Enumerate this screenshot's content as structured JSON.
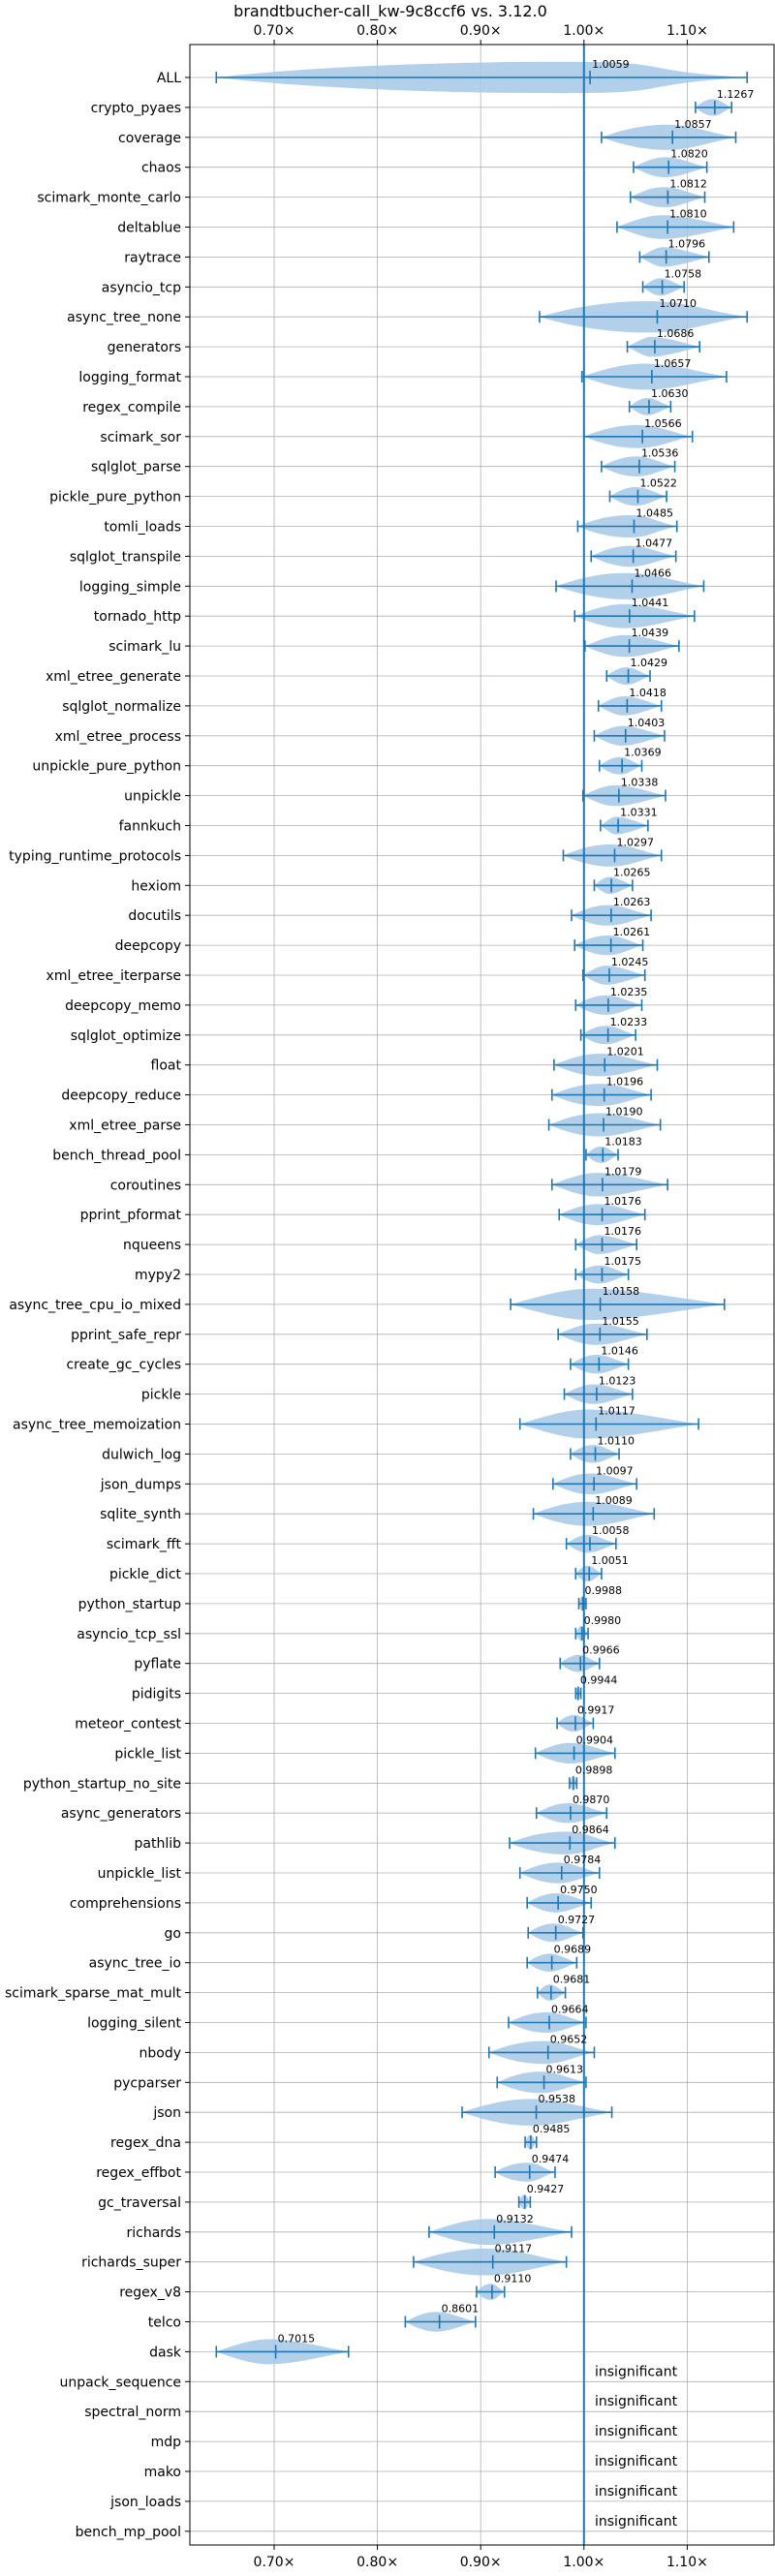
{
  "chart_data": {
    "type": "violin",
    "title": "brandtbucher-call_kw-9c8ccf6 vs. 3.12.0",
    "xlabel": "",
    "ylabel": "",
    "xlim": [
      0.63,
      1.18
    ],
    "x_ticks": [
      0.7,
      0.8,
      0.9,
      1.0,
      1.1
    ],
    "x_tick_labels": [
      "0.70×",
      "0.80×",
      "0.90×",
      "1.00×",
      "1.10×"
    ],
    "reference_line": 1.0,
    "grid": true,
    "colors": {
      "accent": "#1f77b4",
      "violin_fill": "#a6c8e6",
      "grid": "#b0b0b0"
    },
    "insignificant_label": "insignificant",
    "benchmarks": [
      {
        "name": "ALL",
        "value": 1.0059,
        "label": "1.0059",
        "min": 0.644,
        "max": 1.158
      },
      {
        "name": "crypto_pyaes",
        "value": 1.1267,
        "label": "1.1267",
        "min": 1.108,
        "max": 1.143
      },
      {
        "name": "coverage",
        "value": 1.0857,
        "label": "1.0857",
        "min": 1.017,
        "max": 1.147
      },
      {
        "name": "chaos",
        "value": 1.082,
        "label": "1.0820",
        "min": 1.048,
        "max": 1.119
      },
      {
        "name": "scimark_monte_carlo",
        "value": 1.0812,
        "label": "1.0812",
        "min": 1.045,
        "max": 1.117
      },
      {
        "name": "deltablue",
        "value": 1.081,
        "label": "1.0810",
        "min": 1.032,
        "max": 1.145
      },
      {
        "name": "raytrace",
        "value": 1.0796,
        "label": "1.0796",
        "min": 1.054,
        "max": 1.121
      },
      {
        "name": "asyncio_tcp",
        "value": 1.0758,
        "label": "1.0758",
        "min": 1.057,
        "max": 1.097
      },
      {
        "name": "async_tree_none",
        "value": 1.071,
        "label": "1.0710",
        "min": 0.957,
        "max": 1.158
      },
      {
        "name": "generators",
        "value": 1.0686,
        "label": "1.0686",
        "min": 1.042,
        "max": 1.112
      },
      {
        "name": "logging_format",
        "value": 1.0657,
        "label": "1.0657",
        "min": 0.998,
        "max": 1.138
      },
      {
        "name": "regex_compile",
        "value": 1.063,
        "label": "1.0630",
        "min": 1.044,
        "max": 1.084
      },
      {
        "name": "scimark_sor",
        "value": 1.0566,
        "label": "1.0566",
        "min": 1.0,
        "max": 1.105
      },
      {
        "name": "sqlglot_parse",
        "value": 1.0536,
        "label": "1.0536",
        "min": 1.017,
        "max": 1.088
      },
      {
        "name": "pickle_pure_python",
        "value": 1.0522,
        "label": "1.0522",
        "min": 1.025,
        "max": 1.08
      },
      {
        "name": "tomli_loads",
        "value": 1.0485,
        "label": "1.0485",
        "min": 0.994,
        "max": 1.09
      },
      {
        "name": "sqlglot_transpile",
        "value": 1.0477,
        "label": "1.0477",
        "min": 1.007,
        "max": 1.089
      },
      {
        "name": "logging_simple",
        "value": 1.0466,
        "label": "1.0466",
        "min": 0.973,
        "max": 1.116
      },
      {
        "name": "tornado_http",
        "value": 1.0441,
        "label": "1.0441",
        "min": 0.991,
        "max": 1.107
      },
      {
        "name": "scimark_lu",
        "value": 1.0439,
        "label": "1.0439",
        "min": 1.001,
        "max": 1.092
      },
      {
        "name": "xml_etree_generate",
        "value": 1.0429,
        "label": "1.0429",
        "min": 1.022,
        "max": 1.064
      },
      {
        "name": "sqlglot_normalize",
        "value": 1.0418,
        "label": "1.0418",
        "min": 1.014,
        "max": 1.075
      },
      {
        "name": "xml_etree_process",
        "value": 1.0403,
        "label": "1.0403",
        "min": 1.01,
        "max": 1.078
      },
      {
        "name": "unpickle_pure_python",
        "value": 1.0369,
        "label": "1.0369",
        "min": 1.015,
        "max": 1.056
      },
      {
        "name": "unpickle",
        "value": 1.0338,
        "label": "1.0338",
        "min": 0.999,
        "max": 1.079
      },
      {
        "name": "fannkuch",
        "value": 1.0331,
        "label": "1.0331",
        "min": 1.016,
        "max": 1.062
      },
      {
        "name": "typing_runtime_protocols",
        "value": 1.0297,
        "label": "1.0297",
        "min": 0.98,
        "max": 1.075
      },
      {
        "name": "hexiom",
        "value": 1.0265,
        "label": "1.0265",
        "min": 1.01,
        "max": 1.047
      },
      {
        "name": "docutils",
        "value": 1.0263,
        "label": "1.0263",
        "min": 0.988,
        "max": 1.065
      },
      {
        "name": "deepcopy",
        "value": 1.0261,
        "label": "1.0261",
        "min": 0.991,
        "max": 1.057
      },
      {
        "name": "xml_etree_iterparse",
        "value": 1.0245,
        "label": "1.0245",
        "min": 0.999,
        "max": 1.059
      },
      {
        "name": "deepcopy_memo",
        "value": 1.0235,
        "label": "1.0235",
        "min": 0.992,
        "max": 1.056
      },
      {
        "name": "sqlglot_optimize",
        "value": 1.0233,
        "label": "1.0233",
        "min": 0.997,
        "max": 1.05
      },
      {
        "name": "float",
        "value": 1.0201,
        "label": "1.0201",
        "min": 0.971,
        "max": 1.071
      },
      {
        "name": "deepcopy_reduce",
        "value": 1.0196,
        "label": "1.0196",
        "min": 0.969,
        "max": 1.065
      },
      {
        "name": "xml_etree_parse",
        "value": 1.019,
        "label": "1.0190",
        "min": 0.966,
        "max": 1.074
      },
      {
        "name": "bench_thread_pool",
        "value": 1.0183,
        "label": "1.0183",
        "min": 1.002,
        "max": 1.033
      },
      {
        "name": "coroutines",
        "value": 1.0179,
        "label": "1.0179",
        "min": 0.969,
        "max": 1.081
      },
      {
        "name": "pprint_pformat",
        "value": 1.0176,
        "label": "1.0176",
        "min": 0.976,
        "max": 1.059
      },
      {
        "name": "nqueens",
        "value": 1.0176,
        "label": "1.0176",
        "min": 0.992,
        "max": 1.051
      },
      {
        "name": "mypy2",
        "value": 1.0175,
        "label": "1.0175",
        "min": 0.992,
        "max": 1.043
      },
      {
        "name": "async_tree_cpu_io_mixed",
        "value": 1.0158,
        "label": "1.0158",
        "min": 0.929,
        "max": 1.136
      },
      {
        "name": "pprint_safe_repr",
        "value": 1.0155,
        "label": "1.0155",
        "min": 0.975,
        "max": 1.061
      },
      {
        "name": "create_gc_cycles",
        "value": 1.0146,
        "label": "1.0146",
        "min": 0.987,
        "max": 1.043
      },
      {
        "name": "pickle",
        "value": 1.0123,
        "label": "1.0123",
        "min": 0.981,
        "max": 1.047
      },
      {
        "name": "async_tree_memoization",
        "value": 1.0117,
        "label": "1.0117",
        "min": 0.938,
        "max": 1.111
      },
      {
        "name": "dulwich_log",
        "value": 1.011,
        "label": "1.0110",
        "min": 0.987,
        "max": 1.034
      },
      {
        "name": "json_dumps",
        "value": 1.0097,
        "label": "1.0097",
        "min": 0.97,
        "max": 1.051
      },
      {
        "name": "sqlite_synth",
        "value": 1.0089,
        "label": "1.0089",
        "min": 0.951,
        "max": 1.068
      },
      {
        "name": "scimark_fft",
        "value": 1.0058,
        "label": "1.0058",
        "min": 0.983,
        "max": 1.031
      },
      {
        "name": "pickle_dict",
        "value": 1.0051,
        "label": "1.0051",
        "min": 0.992,
        "max": 1.017
      },
      {
        "name": "python_startup",
        "value": 0.9988,
        "label": "0.9988",
        "min": 0.995,
        "max": 1.002
      },
      {
        "name": "asyncio_tcp_ssl",
        "value": 0.998,
        "label": "0.9980",
        "min": 0.992,
        "max": 1.004
      },
      {
        "name": "pyflate",
        "value": 0.9966,
        "label": "0.9966",
        "min": 0.977,
        "max": 1.015
      },
      {
        "name": "pidigits",
        "value": 0.9944,
        "label": "0.9944",
        "min": 0.992,
        "max": 0.997
      },
      {
        "name": "meteor_contest",
        "value": 0.9917,
        "label": "0.9917",
        "min": 0.974,
        "max": 1.009
      },
      {
        "name": "pickle_list",
        "value": 0.9904,
        "label": "0.9904",
        "min": 0.953,
        "max": 1.03
      },
      {
        "name": "python_startup_no_site",
        "value": 0.9898,
        "label": "0.9898",
        "min": 0.986,
        "max": 0.993
      },
      {
        "name": "async_generators",
        "value": 0.987,
        "label": "0.9870",
        "min": 0.954,
        "max": 1.022
      },
      {
        "name": "pathlib",
        "value": 0.9864,
        "label": "0.9864",
        "min": 0.928,
        "max": 1.03
      },
      {
        "name": "unpickle_list",
        "value": 0.9784,
        "label": "0.9784",
        "min": 0.938,
        "max": 1.015
      },
      {
        "name": "comprehensions",
        "value": 0.975,
        "label": "0.9750",
        "min": 0.945,
        "max": 1.007
      },
      {
        "name": "go",
        "value": 0.9727,
        "label": "0.9727",
        "min": 0.946,
        "max": 0.999
      },
      {
        "name": "async_tree_io",
        "value": 0.9689,
        "label": "0.9689",
        "min": 0.945,
        "max": 0.993
      },
      {
        "name": "scimark_sparse_mat_mult",
        "value": 0.9681,
        "label": "0.9681",
        "min": 0.955,
        "max": 0.982
      },
      {
        "name": "logging_silent",
        "value": 0.9664,
        "label": "0.9664",
        "min": 0.927,
        "max": 1.002
      },
      {
        "name": "nbody",
        "value": 0.9652,
        "label": "0.9652",
        "min": 0.908,
        "max": 1.01
      },
      {
        "name": "pycparser",
        "value": 0.9613,
        "label": "0.9613",
        "min": 0.916,
        "max": 1.002
      },
      {
        "name": "json",
        "value": 0.9538,
        "label": "0.9538",
        "min": 0.882,
        "max": 1.027
      },
      {
        "name": "regex_dna",
        "value": 0.9485,
        "label": "0.9485",
        "min": 0.943,
        "max": 0.954
      },
      {
        "name": "regex_effbot",
        "value": 0.9474,
        "label": "0.9474",
        "min": 0.914,
        "max": 0.972
      },
      {
        "name": "gc_traversal",
        "value": 0.9427,
        "label": "0.9427",
        "min": 0.937,
        "max": 0.948
      },
      {
        "name": "richards",
        "value": 0.9132,
        "label": "0.9132",
        "min": 0.85,
        "max": 0.988
      },
      {
        "name": "richards_super",
        "value": 0.9117,
        "label": "0.9117",
        "min": 0.835,
        "max": 0.983
      },
      {
        "name": "regex_v8",
        "value": 0.911,
        "label": "0.9110",
        "min": 0.896,
        "max": 0.923
      },
      {
        "name": "telco",
        "value": 0.8601,
        "label": "0.8601",
        "min": 0.827,
        "max": 0.895
      },
      {
        "name": "dask",
        "value": 0.7015,
        "label": "0.7015",
        "min": 0.644,
        "max": 0.772
      },
      {
        "name": "unpack_sequence",
        "value": null,
        "label": "insignificant"
      },
      {
        "name": "spectral_norm",
        "value": null,
        "label": "insignificant"
      },
      {
        "name": "mdp",
        "value": null,
        "label": "insignificant"
      },
      {
        "name": "mako",
        "value": null,
        "label": "insignificant"
      },
      {
        "name": "json_loads",
        "value": null,
        "label": "insignificant"
      },
      {
        "name": "bench_mp_pool",
        "value": null,
        "label": "insignificant"
      }
    ]
  }
}
